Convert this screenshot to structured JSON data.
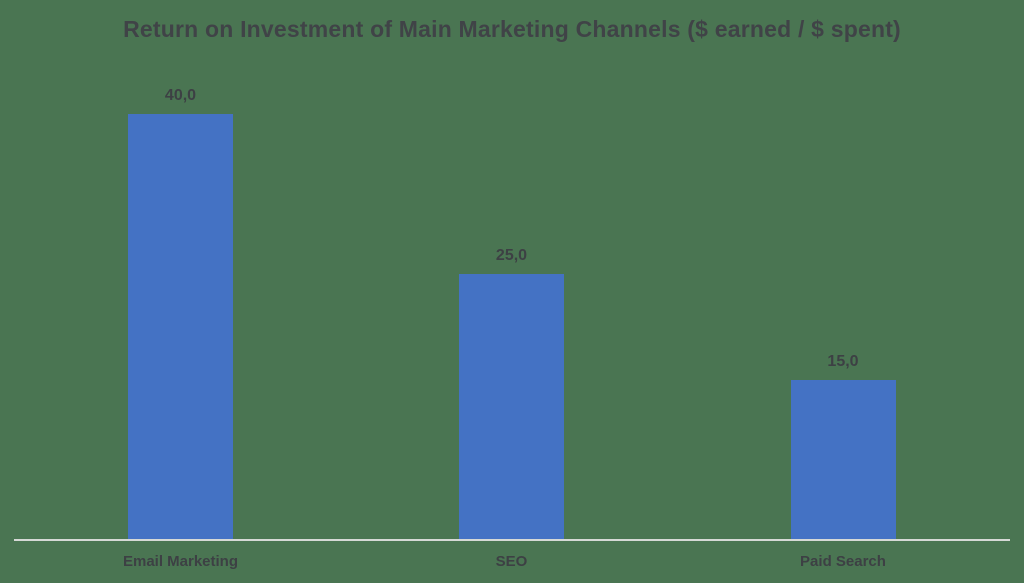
{
  "colors": {
    "background": "#4a7552",
    "bar": "#4472c4",
    "title_text": "#404347",
    "label_text": "#3d4044",
    "axis_line": "#d6d9d6"
  },
  "chart_data": {
    "type": "bar",
    "title": "Return on Investment of Main Marketing Channels ($ earned / $ spent)",
    "categories": [
      "Email Marketing",
      "SEO",
      "Paid Search"
    ],
    "values": [
      40.0,
      25.0,
      15.0
    ],
    "value_labels": [
      "40,0",
      "25,0",
      "15,0"
    ],
    "xlabel": "",
    "ylabel": "",
    "ylim": [
      0,
      40
    ],
    "grid": false,
    "legend": false,
    "decimal_separator": ","
  }
}
